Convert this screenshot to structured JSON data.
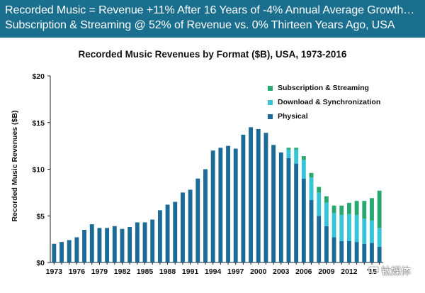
{
  "header": {
    "line1": "Recorded Music = Revenue +11% After 16 Years of -4% Annual Average Growth…",
    "line2": "Subscription & Streaming @ 52% of Revenue vs. 0% Thirteen Years Ago, USA"
  },
  "watermark": "钛媒体",
  "colors": {
    "banner": "#1a6f8f",
    "physical": "#1c6b96",
    "download_sync": "#35c5d6",
    "subscription": "#28a86f"
  },
  "chart_data": {
    "type": "bar",
    "stacked": true,
    "title": "Recorded Music Revenues by Format ($B), USA, 1973-2016",
    "xlabel": "",
    "ylabel": "Recorded Music Revenues ($B)",
    "ylim": [
      0,
      20
    ],
    "yticks": [
      "$0",
      "$5",
      "$10",
      "$15",
      "$20"
    ],
    "xtick_labels": [
      "1973",
      "1976",
      "1979",
      "1982",
      "1985",
      "1988",
      "1991",
      "1994",
      "1997",
      "2000",
      "2003",
      "2006",
      "2009",
      "2012",
      "'15"
    ],
    "grid": false,
    "legend_position": "top-right",
    "categories": [
      1973,
      1974,
      1975,
      1976,
      1977,
      1978,
      1979,
      1980,
      1981,
      1982,
      1983,
      1984,
      1985,
      1986,
      1987,
      1988,
      1989,
      1990,
      1991,
      1992,
      1993,
      1994,
      1995,
      1996,
      1997,
      1998,
      1999,
      2000,
      2001,
      2002,
      2003,
      2004,
      2005,
      2006,
      2007,
      2008,
      2009,
      2010,
      2011,
      2012,
      2013,
      2014,
      2015,
      2016
    ],
    "series": [
      {
        "name": "Subscription & Streaming",
        "color": "#28a86f",
        "values": [
          0,
          0,
          0,
          0,
          0,
          0,
          0,
          0,
          0,
          0,
          0,
          0,
          0,
          0,
          0,
          0,
          0,
          0,
          0,
          0,
          0,
          0,
          0,
          0,
          0,
          0,
          0,
          0,
          0,
          0,
          0,
          0.2,
          0.2,
          0.4,
          0.5,
          0.6,
          0.7,
          0.8,
          1.0,
          1.2,
          1.5,
          1.9,
          2.4,
          4.0
        ]
      },
      {
        "name": "Download & Synchronization",
        "color": "#35c5d6",
        "values": [
          0,
          0,
          0,
          0,
          0,
          0,
          0,
          0,
          0,
          0,
          0,
          0,
          0,
          0,
          0,
          0,
          0,
          0,
          0,
          0,
          0,
          0,
          0,
          0,
          0,
          0,
          0,
          0,
          0,
          0,
          0,
          0.9,
          1.5,
          2.0,
          2.4,
          2.5,
          2.5,
          2.6,
          2.8,
          2.9,
          2.9,
          2.7,
          2.4,
          2.0
        ]
      },
      {
        "name": "Physical",
        "color": "#1c6b96",
        "values": [
          2.0,
          2.2,
          2.4,
          2.7,
          3.5,
          4.1,
          3.7,
          3.7,
          3.9,
          3.6,
          3.8,
          4.3,
          4.3,
          4.6,
          5.6,
          6.2,
          6.5,
          7.5,
          7.8,
          9.0,
          10.0,
          12.0,
          12.3,
          12.5,
          12.2,
          13.7,
          14.5,
          14.3,
          13.9,
          12.6,
          11.8,
          11.2,
          10.6,
          9.0,
          6.7,
          5.0,
          3.9,
          2.7,
          2.3,
          2.3,
          2.2,
          2.0,
          2.1,
          1.7
        ]
      }
    ]
  }
}
